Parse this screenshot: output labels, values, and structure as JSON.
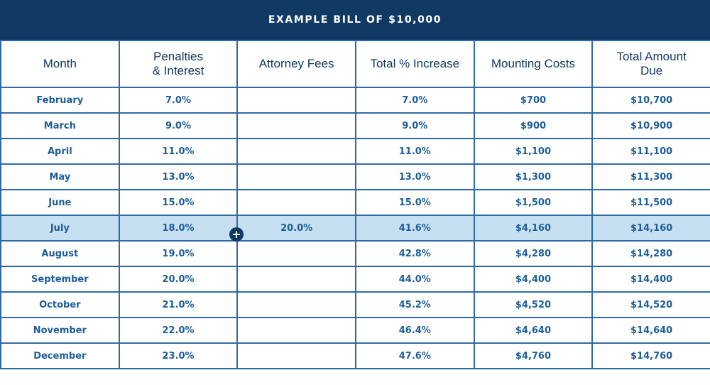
{
  "title": "EXAMPLE BILL OF $10,000",
  "headers": [
    "Month",
    "Penalties & Interest",
    "Attorney Fees",
    "Total % Increase",
    "Mounting Costs",
    "Total Amount Due"
  ],
  "header_lines": [
    [
      "Month"
    ],
    [
      "Penalties",
      "& Interest"
    ],
    [
      "Attorney Fees"
    ],
    [
      "Total % Increase"
    ],
    [
      "Mounting Costs"
    ],
    [
      "Total Amount",
      "Due"
    ]
  ],
  "rows": [
    {
      "month": "February",
      "penalties": "7.0%",
      "attorney": "",
      "increase": "7.0%",
      "costs": "$700",
      "total": "$10,700"
    },
    {
      "month": "March",
      "penalties": "9.0%",
      "attorney": "",
      "increase": "9.0%",
      "costs": "$900",
      "total": "$10,900"
    },
    {
      "month": "April",
      "penalties": "11.0%",
      "attorney": "",
      "increase": "11.0%",
      "costs": "$1,100",
      "total": "$11,100"
    },
    {
      "month": "May",
      "penalties": "13.0%",
      "attorney": "",
      "increase": "13.0%",
      "costs": "$1,300",
      "total": "$11,300"
    },
    {
      "month": "June",
      "penalties": "15.0%",
      "attorney": "",
      "increase": "15.0%",
      "costs": "$1,500",
      "total": "$11,500"
    },
    {
      "month": "July",
      "penalties": "18.0%",
      "attorney": "20.0%",
      "increase": "41.6%",
      "costs": "$4,160",
      "total": "$14,160",
      "highlight": true
    },
    {
      "month": "August",
      "penalties": "19.0%",
      "attorney": "",
      "increase": "42.8%",
      "costs": "$4,280",
      "total": "$14,280"
    },
    {
      "month": "September",
      "penalties": "20.0%",
      "attorney": "",
      "increase": "44.0%",
      "costs": "$4,400",
      "total": "$14,400"
    },
    {
      "month": "October",
      "penalties": "21.0%",
      "attorney": "",
      "increase": "45.2%",
      "costs": "$4,520",
      "total": "$14,520"
    },
    {
      "month": "November",
      "penalties": "22.0%",
      "attorney": "",
      "increase": "46.4%",
      "costs": "$4,640",
      "total": "$14,640"
    },
    {
      "month": "December",
      "penalties": "23.0%",
      "attorney": "",
      "increase": "47.6%",
      "costs": "$4,760",
      "total": "$14,760"
    }
  ],
  "icons": {
    "attorney_fee_marker": "plus-circle-icon"
  },
  "colors": {
    "title_bg": "#103a63",
    "header_text": "#12365e",
    "cell_text": "#1d5d99",
    "border": "#2f6aa6",
    "highlight_bg": "#c6e0f2"
  }
}
